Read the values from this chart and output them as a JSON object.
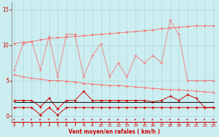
{
  "x": [
    0,
    1,
    2,
    3,
    4,
    5,
    6,
    7,
    8,
    9,
    10,
    11,
    12,
    13,
    14,
    15,
    16,
    17,
    18,
    19,
    20,
    21,
    22,
    23
  ],
  "line_upper_jagged": [
    6.5,
    10.2,
    10.5,
    6.5,
    11.2,
    5.5,
    11.5,
    11.5,
    5.5,
    8.5,
    10.2,
    5.5,
    7.5,
    5.5,
    8.5,
    7.5,
    8.5,
    7.5,
    13.5,
    11.5,
    5.0,
    5.0,
    5.0,
    5.0
  ],
  "line_upper_increasing": [
    10.2,
    10.4,
    10.5,
    10.7,
    10.9,
    11.0,
    11.1,
    11.2,
    11.3,
    11.4,
    11.5,
    11.6,
    11.7,
    11.8,
    11.9,
    12.0,
    12.1,
    12.3,
    12.4,
    12.5,
    12.6,
    12.7,
    12.7,
    12.7
  ],
  "line_lower_decreasing": [
    5.8,
    5.5,
    5.3,
    5.2,
    5.0,
    5.0,
    4.9,
    4.8,
    4.6,
    4.5,
    4.4,
    4.3,
    4.3,
    4.2,
    4.1,
    4.0,
    3.9,
    3.8,
    3.7,
    3.7,
    3.6,
    3.5,
    3.4,
    3.3
  ],
  "line_mid_red": [
    2.2,
    2.2,
    2.2,
    1.3,
    2.5,
    1.0,
    2.2,
    2.2,
    3.5,
    2.2,
    2.2,
    2.2,
    2.2,
    2.2,
    2.2,
    2.2,
    2.0,
    2.2,
    2.8,
    2.2,
    3.0,
    2.5,
    1.2,
    1.2
  ],
  "line_bottom_darkred": [
    1.2,
    1.2,
    1.2,
    0.15,
    1.2,
    0.15,
    1.2,
    1.2,
    1.2,
    1.2,
    1.2,
    1.2,
    1.2,
    1.2,
    1.2,
    1.2,
    1.2,
    1.2,
    1.2,
    1.2,
    1.2,
    1.2,
    1.2,
    1.2
  ],
  "line_black_flat": [
    2.0,
    2.0,
    2.0,
    2.0,
    2.0,
    2.0,
    2.0,
    2.0,
    2.0,
    2.0,
    2.0,
    2.0,
    2.0,
    2.0,
    2.0,
    2.0,
    2.0,
    2.0,
    2.0,
    2.0,
    2.0,
    2.0,
    2.0,
    2.0
  ],
  "bg_color": "#cceef0",
  "grid_color": "#aad8dc",
  "light_pink": "#f08080",
  "salmon": "#f87070",
  "dark_red": "#cc0000",
  "black": "#111111",
  "xlabel": "Vent moyen/en rafales ( km/h )",
  "yticks": [
    0,
    5,
    10,
    15
  ],
  "xlim": [
    -0.3,
    23.3
  ],
  "ylim": [
    -0.8,
    16.0
  ]
}
